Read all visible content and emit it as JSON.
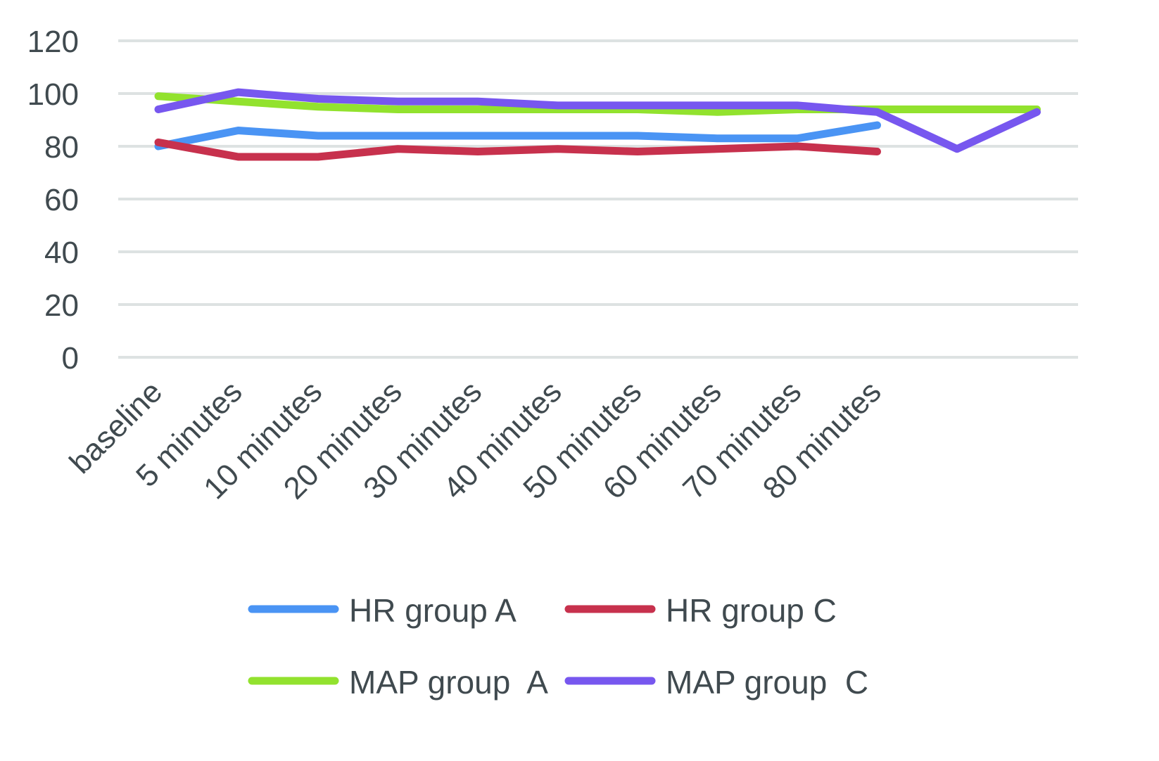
{
  "chart_data": {
    "type": "line",
    "title": "",
    "xlabel": "",
    "ylabel": "",
    "ylim": [
      0,
      120
    ],
    "yticks": [
      0,
      20,
      40,
      60,
      80,
      100,
      120
    ],
    "grid": true,
    "legend_position": "bottom",
    "categories": [
      "baseline",
      "5 minutes",
      "10 minutes",
      "20 minutes",
      "30 minutes",
      "40 minutes",
      "50 minutes",
      "60 minutes",
      "70 minutes",
      "80 minutes",
      "",
      ""
    ],
    "series": [
      {
        "name": "HR group A",
        "color": "#4a94f4",
        "values": [
          80,
          86,
          84,
          84,
          84,
          84,
          84,
          83,
          83,
          88,
          null,
          null
        ]
      },
      {
        "name": "HR group C",
        "color": "#c7314d",
        "values": [
          81.5,
          76,
          76,
          79,
          78,
          79,
          78,
          79,
          80,
          78,
          null,
          null
        ]
      },
      {
        "name": "MAP group  A",
        "color": "#92e22e",
        "values": [
          99,
          97,
          95,
          94,
          94,
          94,
          94,
          93,
          94,
          94,
          94,
          94
        ]
      },
      {
        "name": "MAP group  C",
        "color": "#7757ef",
        "values": [
          94,
          100.5,
          98,
          97,
          97,
          95.5,
          95.5,
          95.5,
          95.5,
          93,
          79,
          93
        ]
      }
    ]
  }
}
